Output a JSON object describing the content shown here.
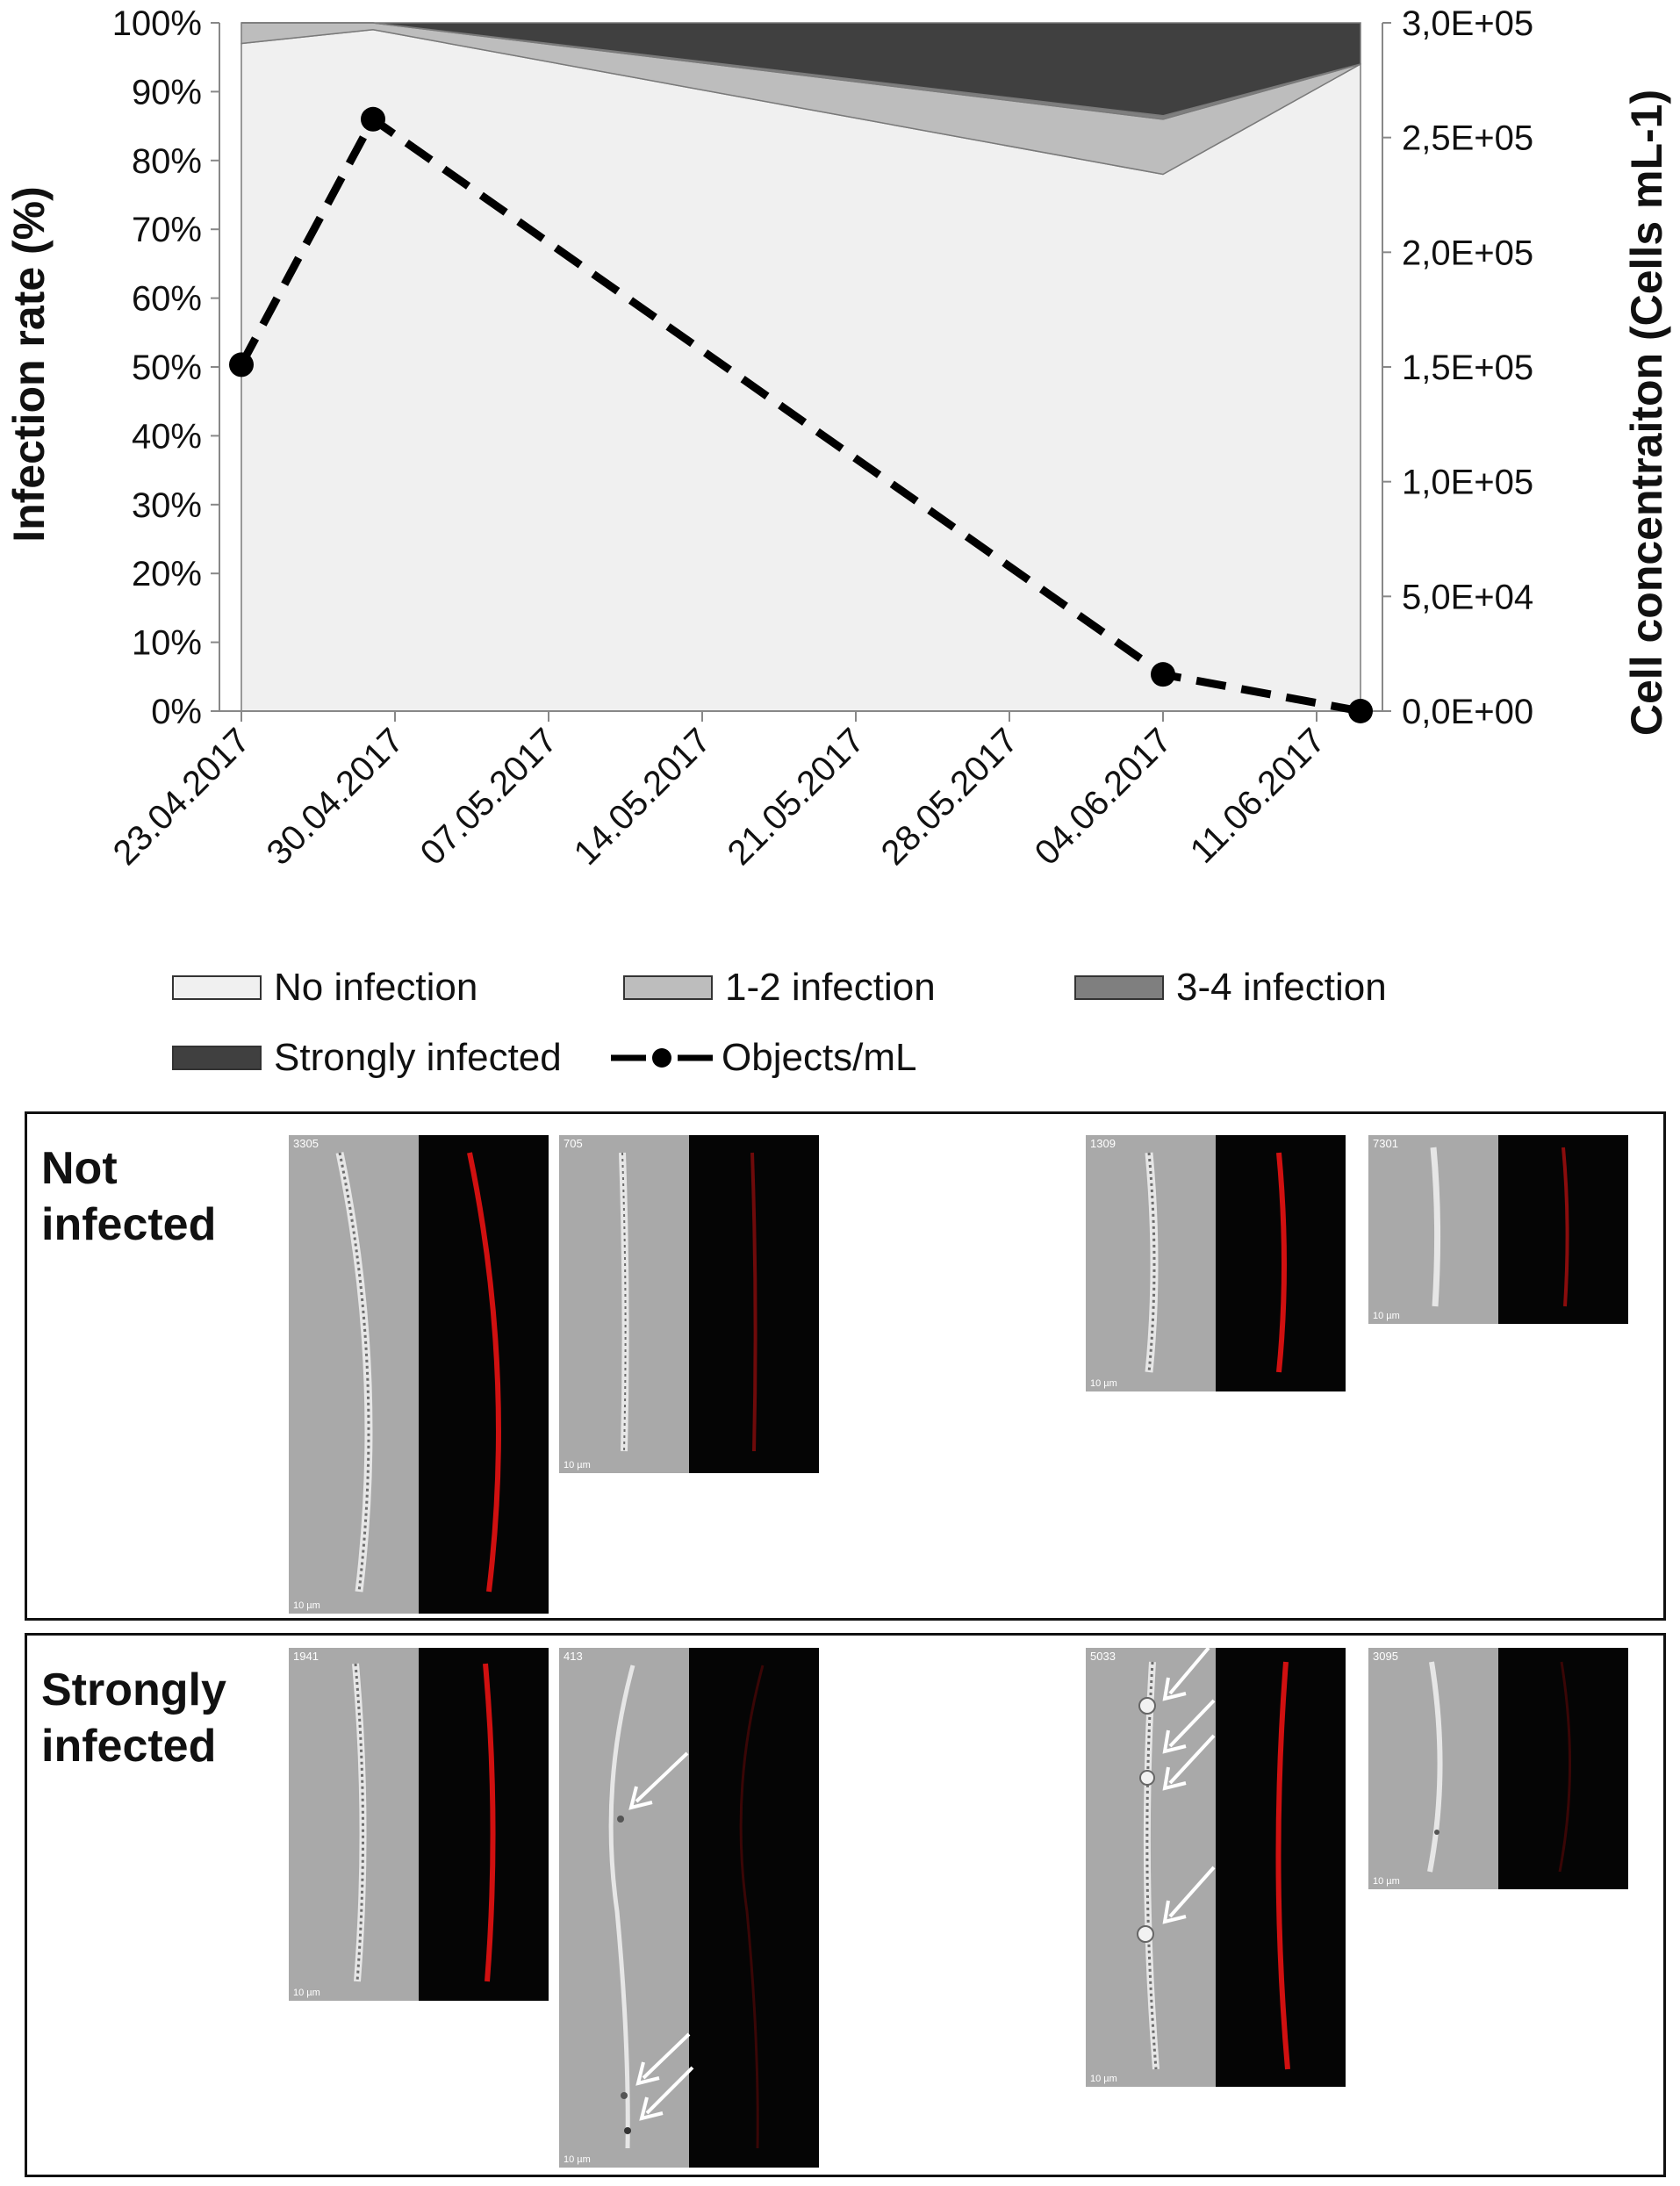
{
  "chart_data": {
    "type": "area",
    "x": [
      "23.04.2017",
      "29.04.2017",
      "04.06.2017",
      "13.06.2017"
    ],
    "x_ticks": [
      "23.04.2017",
      "30.04.2017",
      "07.05.2017",
      "14.05.2017",
      "21.05.2017",
      "28.05.2017",
      "04.06.2017",
      "11.06.2017"
    ],
    "series": [
      {
        "name": "No infection",
        "type": "area",
        "axis": "left",
        "color": "#f0f0f0",
        "values": [
          97,
          99,
          78,
          94
        ]
      },
      {
        "name": "1-2 infection",
        "type": "area",
        "axis": "left",
        "color": "#bdbdbd",
        "values": [
          3,
          1,
          8,
          0
        ]
      },
      {
        "name": "3-4 infection",
        "type": "area",
        "axis": "left",
        "color": "#7f7f7f",
        "values": [
          0,
          0,
          0.5,
          0
        ]
      },
      {
        "name": "Strongly infected",
        "type": "area",
        "axis": "left",
        "color": "#404040",
        "values": [
          0,
          0,
          13.5,
          6
        ]
      },
      {
        "name": "Objects/mL",
        "type": "line",
        "axis": "right",
        "color": "#000000",
        "values": [
          151000,
          258000,
          16000,
          0
        ]
      }
    ],
    "ylabel": "Infection rate (%)",
    "y2label": "Cell concentraiton (Cells mL-1)",
    "ylim": [
      0,
      100
    ],
    "y2lim": [
      0,
      300000
    ],
    "y_ticks": [
      "0%",
      "10%",
      "20%",
      "30%",
      "40%",
      "50%",
      "60%",
      "70%",
      "80%",
      "90%",
      "100%"
    ],
    "y2_ticks": [
      "0,0E+00",
      "5,0E+04",
      "1,0E+05",
      "1,5E+05",
      "2,0E+05",
      "2,5E+05",
      "3,0E+05"
    ],
    "legend_position": "bottom",
    "grid": false
  },
  "legend": {
    "no_infection": "No infection",
    "infection_1_2": "1-2 infection",
    "infection_3_4": "3-4 infection",
    "strongly_infected": "Strongly infected",
    "objects_ml": "Objects/mL"
  },
  "panels": {
    "not_infected": {
      "title": "Not infected",
      "images": [
        {
          "id": "3305",
          "scale": "10 µm"
        },
        {
          "id": "705",
          "scale": "10 µm"
        },
        {
          "id": "1309",
          "scale": "10 µm"
        },
        {
          "id": "7301",
          "scale": "10 µm"
        }
      ]
    },
    "strongly_infected": {
      "title": "Strongly infected",
      "images": [
        {
          "id": "1941",
          "scale": "10 µm"
        },
        {
          "id": "413",
          "scale": "10 µm"
        },
        {
          "id": "5033",
          "scale": "10 µm"
        },
        {
          "id": "3095",
          "scale": "10 µm"
        }
      ]
    }
  },
  "colors": {
    "brightfield_bg": "#a9a9a9",
    "fluorescence_bg": "#050505",
    "fluorescence_red": "#d01010",
    "arrow": "#ffffff"
  }
}
